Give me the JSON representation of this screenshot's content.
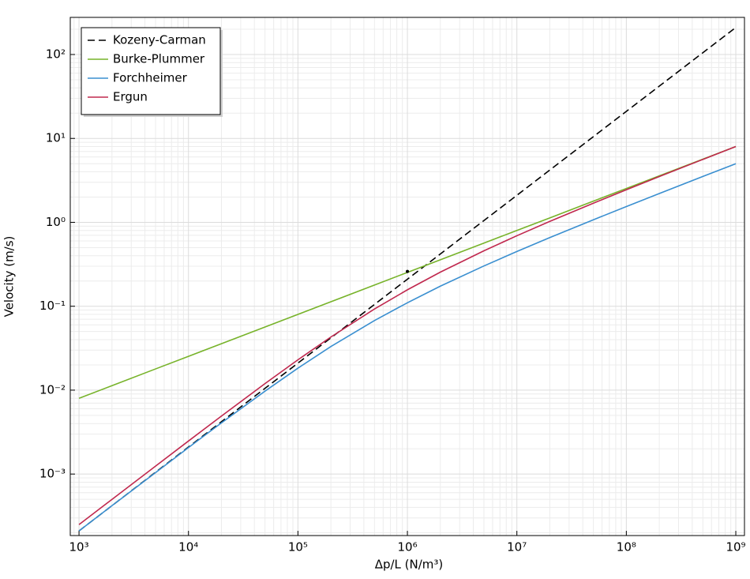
{
  "chart_data": {
    "type": "line",
    "x_label": "Δp/L (N/m³)",
    "y_label": "Velocity (m/s)",
    "xscale": "log",
    "yscale": "log",
    "grid": true,
    "minor_grid": true,
    "legend": "upper left",
    "xlim": [
      832,
      1200000000
    ],
    "ylim": [
      0.000185,
      277
    ],
    "xticks": [
      {
        "value": 1000,
        "label": "10³"
      },
      {
        "value": 10000,
        "label": "10⁴"
      },
      {
        "value": 100000,
        "label": "10⁵"
      },
      {
        "value": 1000000,
        "label": "10⁶"
      },
      {
        "value": 10000000,
        "label": "10⁷"
      },
      {
        "value": 100000000,
        "label": "10⁸"
      },
      {
        "value": 1000000000,
        "label": "10⁹"
      }
    ],
    "yticks": [
      {
        "value": 0.001,
        "label": "10⁻³"
      },
      {
        "value": 0.01,
        "label": "10⁻²"
      },
      {
        "value": 0.1,
        "label": "10⁻¹"
      },
      {
        "value": 1,
        "label": "10⁰"
      },
      {
        "value": 10,
        "label": "10¹"
      },
      {
        "value": 100,
        "label": "10²"
      }
    ],
    "x": [
      1000,
      2000,
      5000,
      10000,
      20000,
      50000,
      100000,
      200000,
      500000,
      1000000,
      2000000,
      5000000,
      10000000,
      20000000,
      50000000,
      100000000,
      200000000,
      500000000,
      1000000000
    ],
    "series": [
      {
        "name": "Kozeny-Carman",
        "color": "#000000",
        "dashed": true,
        "values": [
          0.00021,
          0.00042,
          0.00105,
          0.0021,
          0.0042,
          0.0105,
          0.021,
          0.042,
          0.105,
          0.21,
          0.42,
          1.05,
          2.1,
          4.2,
          10.5,
          21,
          42,
          105,
          210
        ]
      },
      {
        "name": "Burke-Plummer",
        "color": "#77b32a",
        "values": [
          0.008,
          0.0113,
          0.0179,
          0.0253,
          0.0358,
          0.0566,
          0.08,
          0.113,
          0.179,
          0.253,
          0.358,
          0.566,
          0.8,
          1.13,
          1.79,
          2.53,
          3.58,
          5.66,
          8
        ]
      },
      {
        "name": "Forchheimer",
        "color": "#3a8fd0",
        "values": [
          0.00021,
          0.00042,
          0.00104,
          0.00207,
          0.00407,
          0.00973,
          0.0183,
          0.0331,
          0.0676,
          0.11,
          0.1735,
          0.302,
          0.449,
          0.658,
          1.073,
          1.541,
          2.204,
          3.52,
          5.0
        ]
      },
      {
        "name": "Ergun",
        "color": "#c0284e",
        "values": [
          0.00025,
          0.000499,
          0.001244,
          0.002477,
          0.00491,
          0.01196,
          0.023,
          0.043,
          0.0926,
          0.157,
          0.255,
          0.458,
          0.692,
          1.026,
          1.692,
          2.444,
          3.509,
          5.62,
          8.01
        ]
      }
    ],
    "marker": {
      "x": 1000000,
      "y": 0.26
    }
  }
}
